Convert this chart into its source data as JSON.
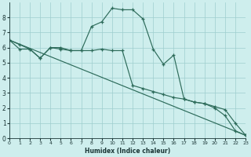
{
  "xlabel": "Humidex (Indice chaleur)",
  "bg_color": "#ceeeed",
  "line_color": "#2d6b5a",
  "grid_color": "#9ecece",
  "xlim": [
    0,
    23
  ],
  "ylim": [
    0,
    9
  ],
  "xticks": [
    0,
    1,
    2,
    3,
    4,
    5,
    6,
    7,
    8,
    9,
    10,
    11,
    12,
    13,
    14,
    15,
    16,
    17,
    18,
    19,
    20,
    21,
    22,
    23
  ],
  "yticks": [
    0,
    1,
    2,
    3,
    4,
    5,
    6,
    7,
    8
  ],
  "curve1_x": [
    0,
    1,
    2,
    3,
    4,
    5,
    6,
    7,
    8,
    9,
    10,
    11,
    12,
    13,
    14,
    15,
    16,
    17,
    18,
    19,
    20,
    21,
    22,
    23
  ],
  "curve1_y": [
    6.5,
    5.9,
    5.9,
    5.3,
    6.0,
    6.0,
    5.8,
    5.8,
    7.4,
    7.7,
    8.6,
    8.5,
    8.5,
    7.9,
    5.9,
    4.9,
    5.5,
    2.6,
    2.4,
    2.3,
    2.0,
    1.5,
    0.5,
    0.2
  ],
  "curve2_x": [
    0,
    1,
    2,
    3,
    4,
    5,
    6,
    7,
    8,
    9,
    10,
    11,
    12,
    13,
    14,
    15,
    16,
    17,
    18,
    19,
    20,
    21,
    22,
    23
  ],
  "curve2_y": [
    6.5,
    6.2,
    5.9,
    5.3,
    6.0,
    5.9,
    5.8,
    5.8,
    5.8,
    5.9,
    5.8,
    5.8,
    3.5,
    3.3,
    3.1,
    2.9,
    2.7,
    2.6,
    2.4,
    2.3,
    2.1,
    1.9,
    1.0,
    0.2
  ],
  "curve3_x": [
    0,
    23
  ],
  "curve3_y": [
    6.5,
    0.2
  ]
}
